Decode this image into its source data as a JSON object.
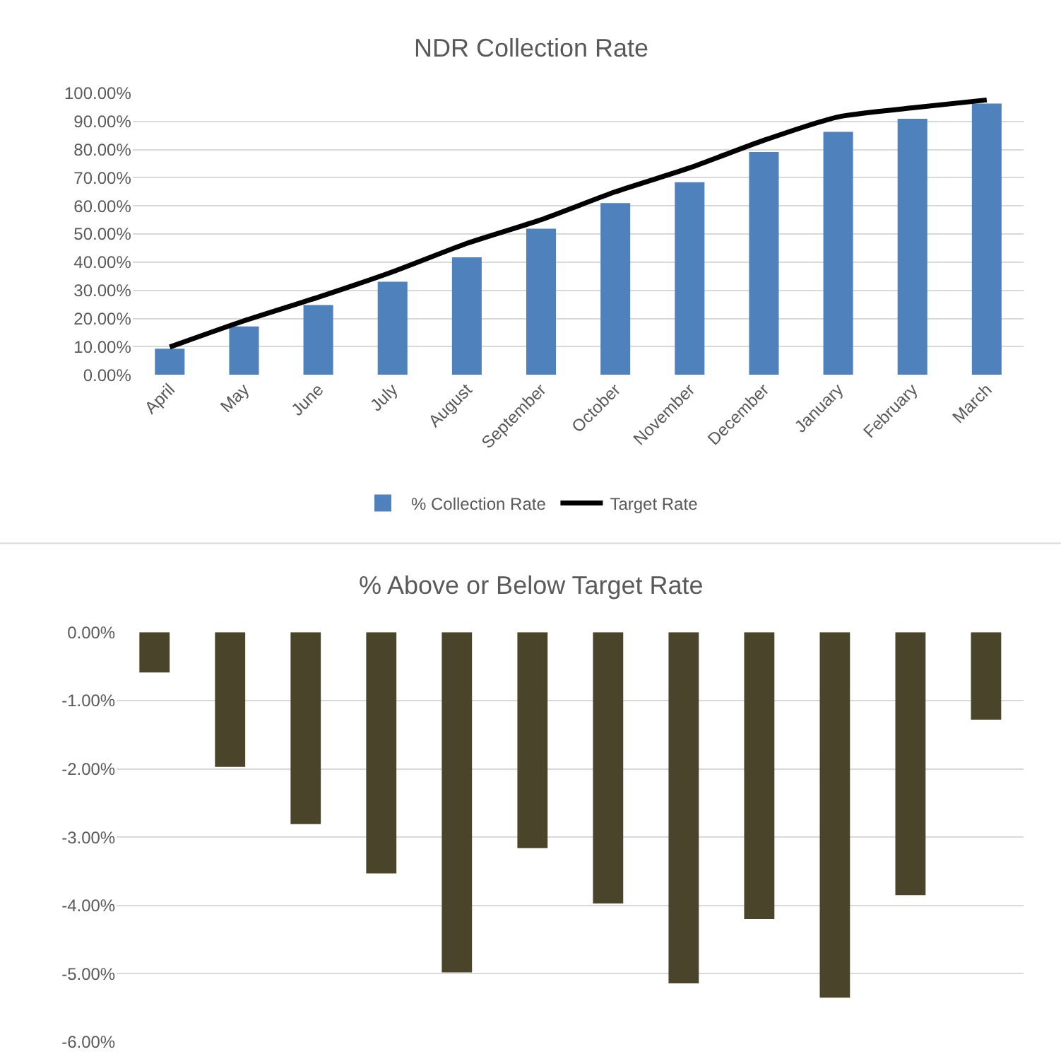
{
  "chart_data": [
    {
      "type": "bar",
      "title": "NDR Collection Rate",
      "categories": [
        "April",
        "May",
        "June",
        "July",
        "August",
        "September",
        "October",
        "November",
        "December",
        "January",
        "February",
        "March"
      ],
      "series": [
        {
          "name": "% Collection Rate",
          "type": "bar",
          "color": "#4f81bd",
          "values": [
            9.3,
            17.2,
            24.8,
            33.1,
            41.7,
            51.9,
            61.0,
            68.4,
            79.1,
            86.3,
            90.9,
            96.3
          ]
        },
        {
          "name": "Target Rate",
          "type": "line",
          "color": "#000000",
          "values": [
            9.9,
            19.2,
            27.6,
            36.6,
            46.7,
            55.1,
            65.0,
            73.5,
            83.3,
            91.6,
            94.8,
            97.6
          ]
        }
      ],
      "ylim": [
        0,
        100
      ],
      "yticks": [
        {
          "value": 0,
          "label": "0.00%"
        },
        {
          "value": 10,
          "label": "10.00%"
        },
        {
          "value": 20,
          "label": "20.00%"
        },
        {
          "value": 30,
          "label": "30.00%"
        },
        {
          "value": 40,
          "label": "40.00%"
        },
        {
          "value": 50,
          "label": "50.00%"
        },
        {
          "value": 60,
          "label": "60.00%"
        },
        {
          "value": 70,
          "label": "70.00%"
        },
        {
          "value": 80,
          "label": "80.00%"
        },
        {
          "value": 90,
          "label": "90.00%"
        },
        {
          "value": 100,
          "label": "100.00%"
        }
      ],
      "grid": "y",
      "legend": "bottom",
      "marker": "none",
      "line_style": "solid"
    },
    {
      "type": "bar",
      "title": "% Above or Below Target Rate",
      "categories": [
        null,
        null,
        null,
        null,
        null,
        null,
        null,
        null,
        null,
        null,
        null,
        null
      ],
      "series": [
        {
          "color": "#4a452a",
          "values": [
            -0.59,
            -1.97,
            -2.81,
            -3.53,
            -4.98,
            -3.16,
            -3.97,
            -5.14,
            -4.2,
            -5.35,
            -3.85,
            -1.28
          ]
        }
      ],
      "ylim": [
        -6,
        0
      ],
      "yticks": [
        {
          "value": 0,
          "label": "0.00%"
        },
        {
          "value": -1,
          "label": "-1.00%"
        },
        {
          "value": -2,
          "label": "-2.00%"
        },
        {
          "value": -3,
          "label": "-3.00%"
        },
        {
          "value": -4,
          "label": "-4.00%"
        },
        {
          "value": -5,
          "label": "-5.00%"
        },
        {
          "value": -6,
          "label": "-6.00%"
        }
      ],
      "grid": "y",
      "tick_labels": "y"
    }
  ]
}
